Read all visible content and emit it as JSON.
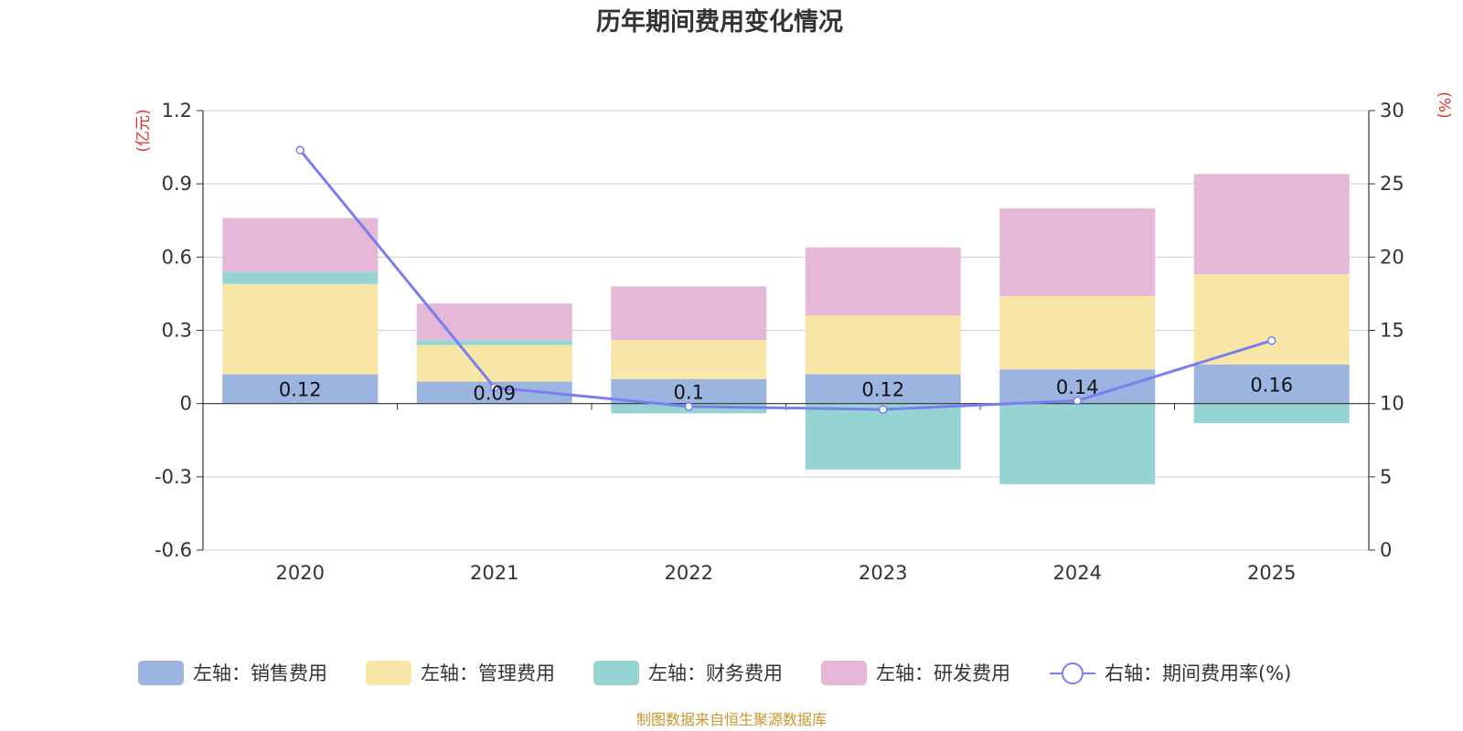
{
  "chart_data": {
    "type": "bar",
    "stacked": true,
    "title": "历年期间费用变化情况",
    "categories": [
      "2020",
      "2021",
      "2022",
      "2023",
      "2024",
      "2025"
    ],
    "left_axis": {
      "unit": "(亿元)",
      "ylim": [
        -0.6,
        1.2
      ],
      "ticks": [
        "-0.6",
        "-0.3",
        "0",
        "0.3",
        "0.6",
        "0.9",
        "1.2"
      ]
    },
    "right_axis": {
      "unit": "(%)",
      "ylim": [
        0,
        30
      ],
      "ticks": [
        "0",
        "5",
        "10",
        "15",
        "20",
        "25",
        "30"
      ]
    },
    "series": [
      {
        "name": "左轴：销售费用",
        "color": "#9bb5e0",
        "values": [
          0.12,
          0.09,
          0.1,
          0.12,
          0.14,
          0.16
        ]
      },
      {
        "name": "左轴：管理费用",
        "color": "#f7e6a6",
        "values": [
          0.37,
          0.15,
          0.16,
          0.24,
          0.3,
          0.37
        ]
      },
      {
        "name": "左轴：财务费用",
        "color": "#96d3d3",
        "values": [
          0.05,
          0.02,
          -0.04,
          -0.27,
          -0.33,
          -0.08
        ]
      },
      {
        "name": "左轴：研发费用",
        "color": "#e6b8d8",
        "values": [
          0.22,
          0.15,
          0.22,
          0.28,
          0.36,
          0.41
        ]
      }
    ],
    "line": {
      "name": "右轴：期间费用率(%)",
      "color": "#7b7ef0",
      "values": [
        27.3,
        11.1,
        9.8,
        9.6,
        10.2,
        14.3
      ]
    },
    "data_labels": [
      "0.12",
      "0.09",
      "0.1",
      "0.12",
      "0.14",
      "0.16"
    ],
    "source": "制图数据来自恒生聚源数据库"
  }
}
